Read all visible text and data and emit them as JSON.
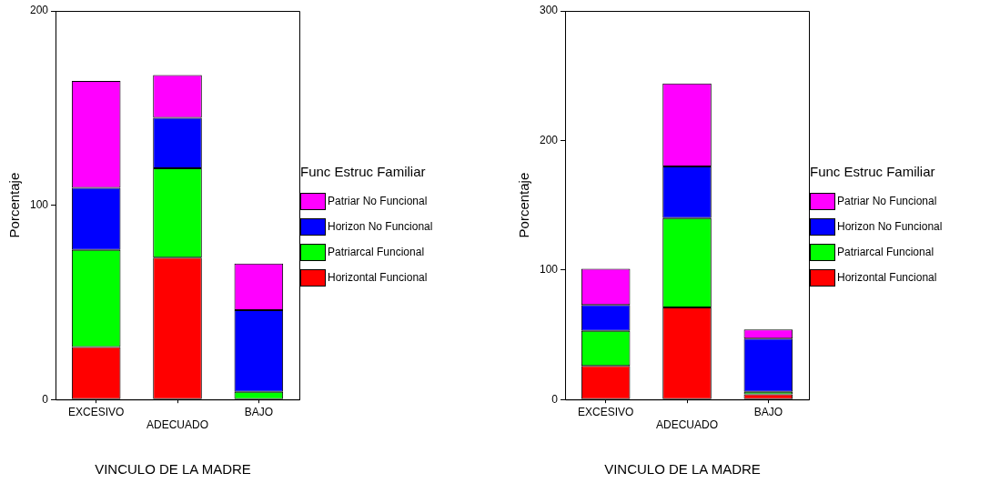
{
  "chart_data": [
    {
      "type": "bar",
      "stacked": true,
      "xlabel": "VINCULO DE LA MADRE",
      "ylabel": "Porcentaje",
      "legend_title": "Func Estruc Familiar",
      "legend": "right",
      "grid": false,
      "categories": [
        "EXCESIVO",
        "ADECUADO",
        "BAJO"
      ],
      "ylim": [
        0,
        200
      ],
      "yticks": [
        0,
        100,
        200
      ],
      "series": [
        {
          "name": "Horizontal Funcional",
          "color": "#ff0000",
          "values": [
            27,
            73,
            0
          ]
        },
        {
          "name": "Patriarcal Funcional",
          "color": "#00ff00",
          "values": [
            50,
            46,
            4
          ]
        },
        {
          "name": "Horizon No Funcional",
          "color": "#0000ff",
          "values": [
            32,
            26,
            42
          ]
        },
        {
          "name": "Patriar No Funcional",
          "color": "#ff00ff",
          "values": [
            55,
            22,
            24
          ]
        }
      ]
    },
    {
      "type": "bar",
      "stacked": true,
      "xlabel": "VINCULO DE LA MADRE",
      "ylabel": "Porcentaje",
      "legend_title": "Func Estruc Familiar",
      "legend": "right",
      "grid": false,
      "categories": [
        "EXCESIVO",
        "ADECUADO",
        "BAJO"
      ],
      "ylim": [
        0,
        300
      ],
      "yticks": [
        0,
        100,
        200,
        300
      ],
      "series": [
        {
          "name": "Horizontal Funcional",
          "color": "#ff0000",
          "values": [
            26,
            71,
            4
          ]
        },
        {
          "name": "Patriarcal Funcional",
          "color": "#00ff00",
          "values": [
            27,
            69,
            2
          ]
        },
        {
          "name": "Horizon No Funcional",
          "color": "#0000ff",
          "values": [
            20,
            40,
            41
          ]
        },
        {
          "name": "Patriar No Funcional",
          "color": "#ff00ff",
          "values": [
            28,
            64,
            7
          ]
        }
      ]
    }
  ]
}
